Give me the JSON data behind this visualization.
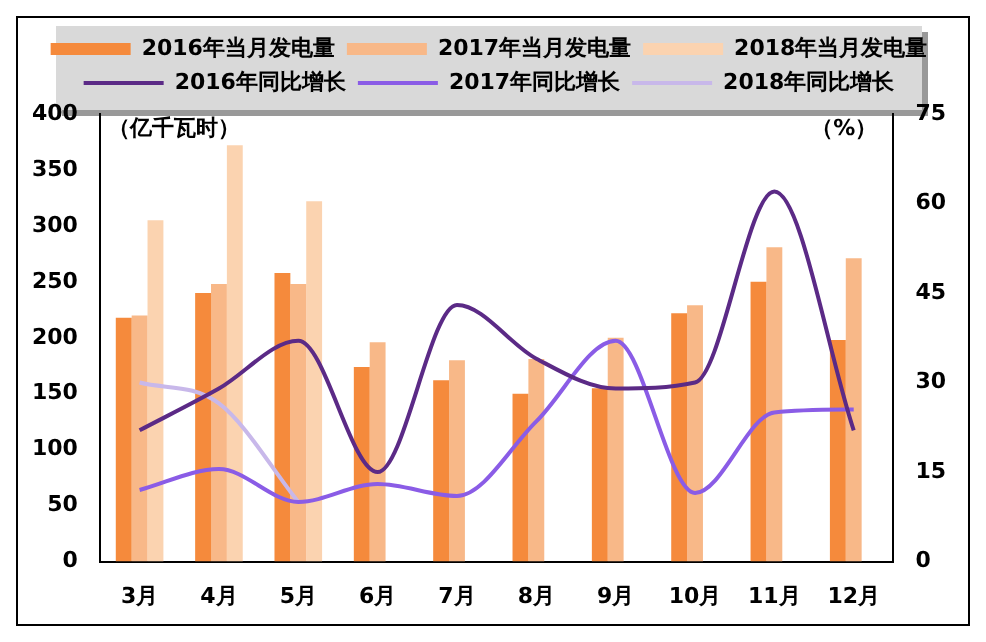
{
  "chart_data": {
    "type": "bar",
    "ylabel": "（亿千瓦时）",
    "y2label": "（%）",
    "categories": [
      "3月",
      "4月",
      "5月",
      "6月",
      "7月",
      "8月",
      "9月",
      "10月",
      "11月",
      "12月"
    ],
    "series": [
      {
        "name": "2016年当月发电量",
        "color": "#f58a3c",
        "values": [
          218,
          240,
          258,
          174,
          162,
          150,
          155,
          222,
          250,
          198
        ]
      },
      {
        "name": "2017年当月发电量",
        "color": "#f8b888",
        "values": [
          220,
          248,
          248,
          196,
          180,
          181,
          200,
          229,
          281,
          271
        ]
      },
      {
        "name": "2018年当月发电量",
        "color": "#fbd3b0",
        "values": [
          305,
          372,
          322,
          null,
          null,
          null,
          null,
          null,
          null,
          null
        ]
      },
      {
        "name": "2016年同比增长",
        "type": "line",
        "axis": "y2",
        "color": "#5b2a86",
        "values": [
          22,
          29,
          37,
          15,
          43,
          34,
          29,
          30,
          62,
          22
        ]
      },
      {
        "name": "2017年同比增长",
        "type": "line",
        "axis": "y2",
        "color": "#8a5ce6",
        "values": [
          12,
          15.5,
          10,
          13,
          11,
          23.5,
          37,
          11.5,
          25,
          25.5
        ]
      },
      {
        "name": "2018年同比增长",
        "type": "line",
        "axis": "y2",
        "color": "#c8b8ea",
        "values": [
          30,
          26.5,
          10,
          null,
          null,
          null,
          null,
          null,
          null,
          null
        ]
      }
    ],
    "ylim": [
      0,
      400
    ],
    "yticks": [
      0,
      50,
      100,
      150,
      200,
      250,
      300,
      350,
      400
    ],
    "y2lim": [
      0,
      75
    ],
    "y2ticks": [
      0,
      15,
      30,
      45,
      60,
      75
    ],
    "grid": false,
    "legend": "top",
    "marker": "none",
    "line_style": "solid"
  }
}
